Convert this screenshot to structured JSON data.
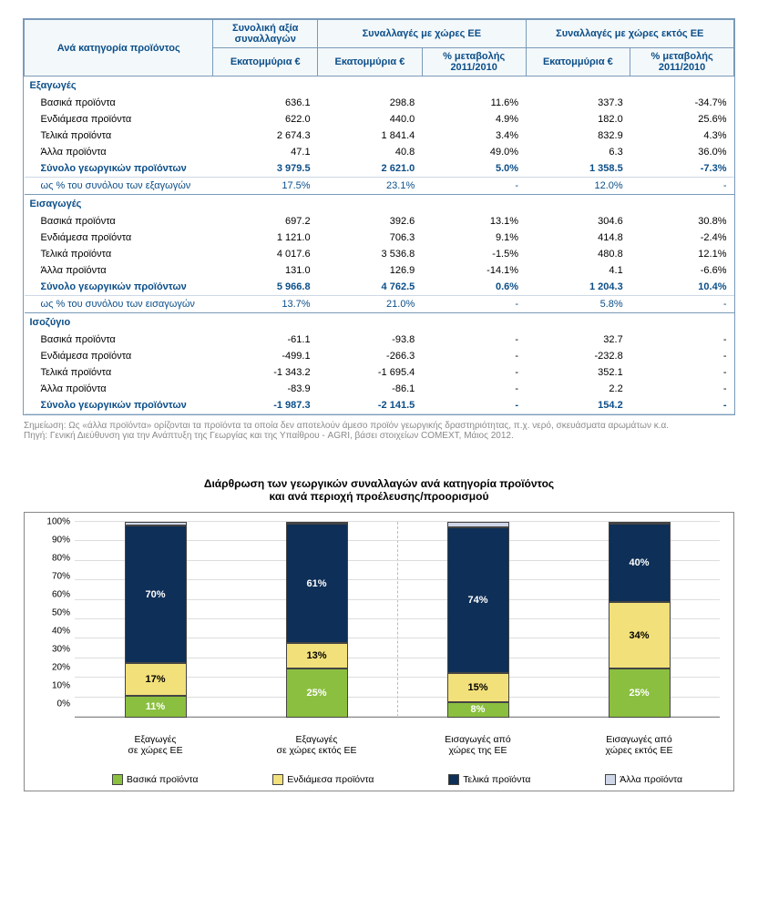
{
  "table": {
    "header": {
      "col1_line1": "Ανά κατηγορία προϊόντος",
      "group_total": "Συνολική αξία συναλλαγών",
      "group_eu": "Συναλλαγές με χώρες ΕΕ",
      "group_noneu": "Συναλλαγές με χώρες εκτός ΕΕ",
      "sub_million": "Εκατομμύρια €",
      "sub_pct": "% μεταβολής 2011/2010"
    },
    "sections": [
      {
        "title": "Εξαγωγές",
        "rows": [
          {
            "label": "Βασικά προϊόντα",
            "total": "636.1",
            "eu_m": "298.8",
            "eu_p": "11.6%",
            "ne_m": "337.3",
            "ne_p": "-34.7%"
          },
          {
            "label": "Ενδιάμεσα προϊόντα",
            "total": "622.0",
            "eu_m": "440.0",
            "eu_p": "4.9%",
            "ne_m": "182.0",
            "ne_p": "25.6%"
          },
          {
            "label": "Τελικά προϊόντα",
            "total": "2 674.3",
            "eu_m": "1 841.4",
            "eu_p": "3.4%",
            "ne_m": "832.9",
            "ne_p": "4.3%"
          },
          {
            "label": "Άλλα προϊόντα",
            "total": "47.1",
            "eu_m": "40.8",
            "eu_p": "49.0%",
            "ne_m": "6.3",
            "ne_p": "36.0%"
          }
        ],
        "total": {
          "label": "Σύνολο γεωργικών προϊόντων",
          "total": "3 979.5",
          "eu_m": "2 621.0",
          "eu_p": "5.0%",
          "ne_m": "1 358.5",
          "ne_p": "-7.3%"
        },
        "pct": {
          "label": "ως % του συνόλου των εξαγωγών",
          "total": "17.5%",
          "eu_m": "23.1%",
          "eu_p": "-",
          "ne_m": "12.0%",
          "ne_p": "-"
        }
      },
      {
        "title": "Εισαγωγές",
        "rows": [
          {
            "label": "Βασικά προϊόντα",
            "total": "697.2",
            "eu_m": "392.6",
            "eu_p": "13.1%",
            "ne_m": "304.6",
            "ne_p": "30.8%"
          },
          {
            "label": "Ενδιάμεσα προϊόντα",
            "total": "1 121.0",
            "eu_m": "706.3",
            "eu_p": "9.1%",
            "ne_m": "414.8",
            "ne_p": "-2.4%"
          },
          {
            "label": "Τελικά προϊόντα",
            "total": "4 017.6",
            "eu_m": "3 536.8",
            "eu_p": "-1.5%",
            "ne_m": "480.8",
            "ne_p": "12.1%"
          },
          {
            "label": "Άλλα προϊόντα",
            "total": "131.0",
            "eu_m": "126.9",
            "eu_p": "-14.1%",
            "ne_m": "4.1",
            "ne_p": "-6.6%"
          }
        ],
        "total": {
          "label": "Σύνολο γεωργικών προϊόντων",
          "total": "5 966.8",
          "eu_m": "4 762.5",
          "eu_p": "0.6%",
          "ne_m": "1 204.3",
          "ne_p": "10.4%"
        },
        "pct": {
          "label": "ως % του συνόλου των εισαγωγών",
          "total": "13.7%",
          "eu_m": "21.0%",
          "eu_p": "-",
          "ne_m": "5.8%",
          "ne_p": "-"
        }
      },
      {
        "title": "Ισοζύγιο",
        "rows": [
          {
            "label": "Βασικά προϊόντα",
            "total": "-61.1",
            "eu_m": "-93.8",
            "eu_p": "-",
            "ne_m": "32.7",
            "ne_p": "-"
          },
          {
            "label": "Ενδιάμεσα προϊόντα",
            "total": "-499.1",
            "eu_m": "-266.3",
            "eu_p": "-",
            "ne_m": "-232.8",
            "ne_p": "-"
          },
          {
            "label": "Τελικά προϊόντα",
            "total": "-1 343.2",
            "eu_m": "-1 695.4",
            "eu_p": "-",
            "ne_m": "352.1",
            "ne_p": "-"
          },
          {
            "label": "Άλλα προϊόντα",
            "total": "-83.9",
            "eu_m": "-86.1",
            "eu_p": "-",
            "ne_m": "2.2",
            "ne_p": "-"
          }
        ],
        "total": {
          "label": "Σύνολο γεωργικών προϊόντων",
          "total": "-1 987.3",
          "eu_m": "-2 141.5",
          "eu_p": "-",
          "ne_m": "154.2",
          "ne_p": "-"
        },
        "pct": null
      }
    ]
  },
  "notes": {
    "line1": "Σημείωση: Ως «άλλα προϊόντα» ορίζονται τα προϊόντα τα οποία δεν αποτελούν άμεσο προϊόν γεωργικής δραστηριότητας, π.χ. νερό, σκευάσματα αρωμάτων κ.α.",
    "line2": "Πηγή: Γενική Διεύθυνση για την Ανάπτυξη της Γεωργίας και της Υπαίθρου - AGRI, βάσει στοιχείων COMEXT, Μάιος 2012."
  },
  "chart": {
    "title_line1": "Διάρθρωση των γεωργικών συναλλαγών ανά κατηγορία προϊόντος",
    "title_line2": "και ανά περιοχή προέλευσης/προορισμού",
    "y_ticks": [
      "0%",
      "10%",
      "20%",
      "30%",
      "40%",
      "50%",
      "60%",
      "70%",
      "80%",
      "90%",
      "100%"
    ],
    "colors": {
      "c1": "#8bbf3f",
      "c2": "#f2e07a",
      "c3": "#0e2f57",
      "c4": "#cfd6e8"
    },
    "series_labels": {
      "s1": "Βασικά προϊόντα",
      "s2": "Ενδιάμεσα προϊόντα",
      "s3": "Τελικά προϊόντα",
      "s4": "Άλλα προϊόντα"
    },
    "bars": [
      {
        "x_line1": "Εξαγωγές",
        "x_line2": "σε χώρες ΕΕ",
        "segs": [
          {
            "k": "c1",
            "v": 11,
            "show": "11%"
          },
          {
            "k": "c2",
            "v": 17,
            "show": "17%"
          },
          {
            "k": "c3",
            "v": 70,
            "show": "70%"
          },
          {
            "k": "c4",
            "v": 2,
            "show": ""
          }
        ]
      },
      {
        "x_line1": "Εξαγωγές",
        "x_line2": "σε χώρες εκτός ΕΕ",
        "segs": [
          {
            "k": "c1",
            "v": 25,
            "show": "25%"
          },
          {
            "k": "c2",
            "v": 13,
            "show": "13%"
          },
          {
            "k": "c3",
            "v": 61,
            "show": "61%"
          },
          {
            "k": "c4",
            "v": 1,
            "show": ""
          }
        ]
      },
      {
        "x_line1": "Εισαγωγές από",
        "x_line2": "χώρες της ΕΕ",
        "segs": [
          {
            "k": "c1",
            "v": 8,
            "show": "8%"
          },
          {
            "k": "c2",
            "v": 15,
            "show": "15%"
          },
          {
            "k": "c3",
            "v": 74,
            "show": "74%"
          },
          {
            "k": "c4",
            "v": 3,
            "show": ""
          }
        ]
      },
      {
        "x_line1": "Εισαγωγές από",
        "x_line2": "χώρες εκτός ΕΕ",
        "segs": [
          {
            "k": "c1",
            "v": 25,
            "show": "25%"
          },
          {
            "k": "c2",
            "v": 34,
            "show": "34%"
          },
          {
            "k": "c3",
            "v": 40,
            "show": "40%"
          },
          {
            "k": "c4",
            "v": 1,
            "show": ""
          }
        ]
      }
    ]
  }
}
